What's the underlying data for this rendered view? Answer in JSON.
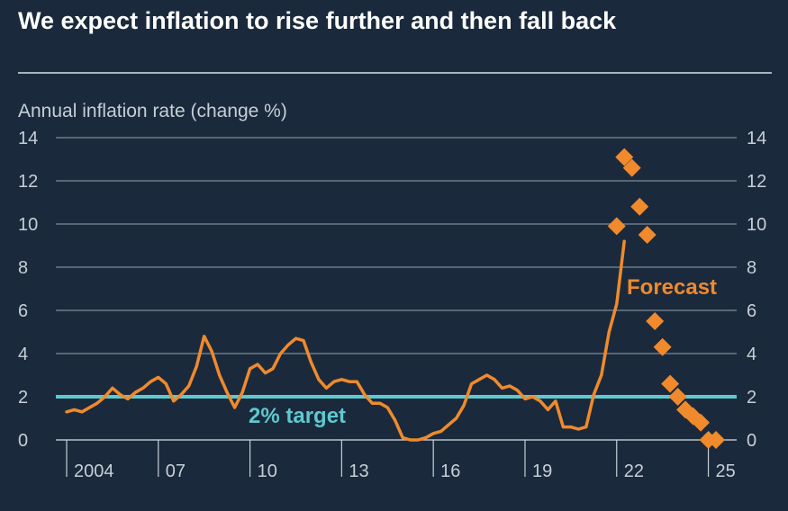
{
  "title": "We expect inflation to rise further and then fall back",
  "chart_data": {
    "type": "line",
    "title": "We expect inflation to rise further and then fall back",
    "ylabel": "Annual inflation rate (change %)",
    "xlabel": "",
    "ylim": [
      0,
      14
    ],
    "yticks": [
      0,
      2,
      4,
      6,
      8,
      10,
      12,
      14
    ],
    "xlim": [
      2004.0,
      2025.75
    ],
    "xticks": [
      {
        "value": 2004,
        "label": "2004"
      },
      {
        "value": 2007,
        "label": "07"
      },
      {
        "value": 2010,
        "label": "10"
      },
      {
        "value": 2013,
        "label": "13"
      },
      {
        "value": 2016,
        "label": "16"
      },
      {
        "value": 2019,
        "label": "19"
      },
      {
        "value": 2022,
        "label": "22"
      },
      {
        "value": 2025,
        "label": "25"
      }
    ],
    "grid": true,
    "target": {
      "value": 2,
      "label": "2% target",
      "color": "#5ec9d0"
    },
    "series": [
      {
        "name": "Actual",
        "kind": "line",
        "color": "#f08a2c",
        "x": [
          2004.0,
          2004.25,
          2004.5,
          2004.75,
          2005.0,
          2005.25,
          2005.5,
          2005.75,
          2006.0,
          2006.25,
          2006.5,
          2006.75,
          2007.0,
          2007.25,
          2007.5,
          2007.75,
          2008.0,
          2008.25,
          2008.5,
          2008.75,
          2009.0,
          2009.25,
          2009.5,
          2009.75,
          2010.0,
          2010.25,
          2010.5,
          2010.75,
          2011.0,
          2011.25,
          2011.5,
          2011.75,
          2012.0,
          2012.25,
          2012.5,
          2012.75,
          2013.0,
          2013.25,
          2013.5,
          2013.75,
          2014.0,
          2014.25,
          2014.5,
          2014.75,
          2015.0,
          2015.25,
          2015.5,
          2015.75,
          2016.0,
          2016.25,
          2016.5,
          2016.75,
          2017.0,
          2017.25,
          2017.5,
          2017.75,
          2018.0,
          2018.25,
          2018.5,
          2018.75,
          2019.0,
          2019.25,
          2019.5,
          2019.75,
          2020.0,
          2020.25,
          2020.5,
          2020.75,
          2021.0,
          2021.25,
          2021.5,
          2021.75,
          2022.0,
          2022.25
        ],
        "values": [
          1.3,
          1.4,
          1.3,
          1.5,
          1.7,
          2.0,
          2.4,
          2.1,
          1.9,
          2.2,
          2.4,
          2.7,
          2.9,
          2.6,
          1.8,
          2.1,
          2.5,
          3.4,
          4.8,
          4.1,
          3.0,
          2.2,
          1.5,
          2.2,
          3.3,
          3.5,
          3.1,
          3.3,
          4.0,
          4.4,
          4.7,
          4.6,
          3.6,
          2.8,
          2.4,
          2.7,
          2.8,
          2.7,
          2.7,
          2.1,
          1.7,
          1.7,
          1.5,
          0.9,
          0.1,
          0.0,
          0.0,
          0.1,
          0.3,
          0.4,
          0.7,
          1.0,
          1.6,
          2.6,
          2.8,
          3.0,
          2.8,
          2.4,
          2.5,
          2.3,
          1.9,
          2.0,
          1.8,
          1.4,
          1.8,
          0.6,
          0.6,
          0.5,
          0.6,
          2.1,
          3.0,
          5.0,
          6.3,
          9.2
        ]
      },
      {
        "name": "Forecast",
        "kind": "markers",
        "label": "Forecast",
        "color": "#f08a2c",
        "x": [
          2022.0,
          2022.25,
          2022.5,
          2022.75,
          2023.0,
          2023.25,
          2023.5,
          2023.75,
          2024.0,
          2024.25,
          2024.5,
          2024.75,
          2025.0,
          2025.25
        ],
        "values": [
          9.9,
          13.1,
          12.6,
          10.8,
          9.5,
          5.5,
          4.3,
          2.6,
          2.0,
          1.4,
          1.1,
          0.8,
          0.0,
          0.0
        ]
      }
    ]
  }
}
